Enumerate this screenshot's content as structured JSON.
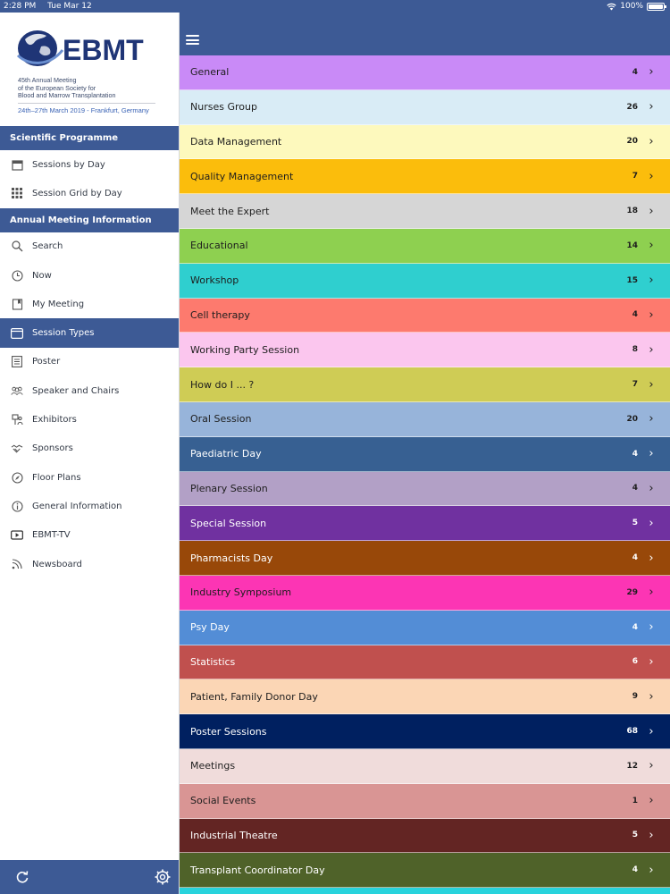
{
  "status_bar": {
    "time": "2:28 PM",
    "date": "Tue Mar 12",
    "battery": "100%",
    "battery_level": 1.0
  },
  "logo": {
    "wordmark": "EBMT",
    "subtitle_lines": [
      "45th Annual Meeting",
      "of the European Society for",
      "Blood and Marrow Transplantation"
    ],
    "dates": "24th–27th March 2019 - Frankfurt, Germany"
  },
  "sidebar": {
    "sections": [
      {
        "title": "Scientific Programme",
        "items": [
          {
            "label": "Sessions by Day",
            "icon": "calendar-icon",
            "active": false
          },
          {
            "label": "Session Grid by Day",
            "icon": "grid-icon",
            "active": false
          }
        ]
      },
      {
        "title": "Annual Meeting Information",
        "items": [
          {
            "label": "Search",
            "icon": "search-icon",
            "active": false
          },
          {
            "label": "Now",
            "icon": "clock-icon",
            "active": false
          },
          {
            "label": "My Meeting",
            "icon": "bookmark-icon",
            "active": false
          },
          {
            "label": "Session Types",
            "icon": "window-icon",
            "active": true
          },
          {
            "label": "Poster",
            "icon": "poster-icon",
            "active": false
          },
          {
            "label": "Speaker and Chairs",
            "icon": "people-icon",
            "active": false
          },
          {
            "label": "Exhibitors",
            "icon": "exhibitor-icon",
            "active": false
          },
          {
            "label": "Sponsors",
            "icon": "handshake-icon",
            "active": false
          },
          {
            "label": "Floor Plans",
            "icon": "compass-icon",
            "active": false
          },
          {
            "label": "General Information",
            "icon": "info-icon",
            "active": false
          },
          {
            "label": "EBMT-TV",
            "icon": "play-icon",
            "active": false
          },
          {
            "label": "Newsboard",
            "icon": "rss-icon",
            "active": false
          }
        ]
      }
    ]
  },
  "session_types": [
    {
      "label": "General",
      "count": "4",
      "bg": "#c98af7",
      "fg": "#1e1e1e"
    },
    {
      "label": "Nurses Group",
      "count": "26",
      "bg": "#d9ecf6",
      "fg": "#1e1e1e"
    },
    {
      "label": "Data Management",
      "count": "20",
      "bg": "#fdf9bd",
      "fg": "#1e1e1e"
    },
    {
      "label": "Quality Management",
      "count": "7",
      "bg": "#fbbd0c",
      "fg": "#1e1e1e"
    },
    {
      "label": "Meet the Expert",
      "count": "18",
      "bg": "#d6d6d6",
      "fg": "#1e1e1e"
    },
    {
      "label": "Educational",
      "count": "14",
      "bg": "#8ed050",
      "fg": "#1e1e1e"
    },
    {
      "label": "Workshop",
      "count": "15",
      "bg": "#2fcfcf",
      "fg": "#1e1e1e"
    },
    {
      "label": "Cell therapy",
      "count": "4",
      "bg": "#fd7a6e",
      "fg": "#1e1e1e"
    },
    {
      "label": "Working Party Session",
      "count": "8",
      "bg": "#fbc6ee",
      "fg": "#1e1e1e"
    },
    {
      "label": "How do I ... ?",
      "count": "7",
      "bg": "#cfcc55",
      "fg": "#1e1e1e"
    },
    {
      "label": "Oral Session",
      "count": "20",
      "bg": "#97b4da",
      "fg": "#1e1e1e"
    },
    {
      "label": "Paediatric Day",
      "count": "4",
      "bg": "#376092",
      "fg": "#ffffff"
    },
    {
      "label": "Plenary Session",
      "count": "4",
      "bg": "#b2a0c6",
      "fg": "#1e1e1e"
    },
    {
      "label": "Special Session",
      "count": "5",
      "bg": "#7031a0",
      "fg": "#ffffff"
    },
    {
      "label": "Pharmacists Day",
      "count": "4",
      "bg": "#984809",
      "fg": "#ffffff"
    },
    {
      "label": "Industry Symposium",
      "count": "29",
      "bg": "#fc35b4",
      "fg": "#1e1e1e"
    },
    {
      "label": "Psy Day",
      "count": "4",
      "bg": "#538dd6",
      "fg": "#ffffff"
    },
    {
      "label": "Statistics",
      "count": "6",
      "bg": "#c0504e",
      "fg": "#ffffff"
    },
    {
      "label": "Patient, Family Donor Day",
      "count": "9",
      "bg": "#fbd6b5",
      "fg": "#1e1e1e"
    },
    {
      "label": "Poster Sessions",
      "count": "68",
      "bg": "#002060",
      "fg": "#ffffff"
    },
    {
      "label": "Meetings",
      "count": "12",
      "bg": "#f0dcdb",
      "fg": "#1e1e1e"
    },
    {
      "label": "Social Events",
      "count": "1",
      "bg": "#d99594",
      "fg": "#1e1e1e"
    },
    {
      "label": "Industrial Theatre",
      "count": "5",
      "bg": "#632523",
      "fg": "#ffffff"
    },
    {
      "label": "Transplant Coordinator Day",
      "count": "4",
      "bg": "#4f6229",
      "fg": "#ffffff"
    }
  ],
  "colors": {
    "primary": "#3d5a95",
    "next_row_peek": "#27d3dc"
  },
  "footer": {
    "left_icon": "refresh-icon",
    "right_icon": "settings-icon"
  }
}
